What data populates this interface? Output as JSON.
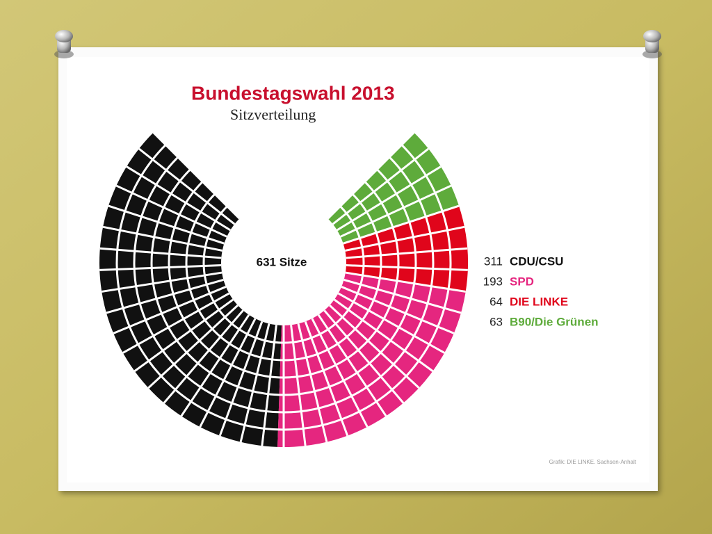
{
  "chart_data": {
    "type": "parliament",
    "title": "Bundestagswahl 2013",
    "subtitle": "Sitzverteilung",
    "center_label": "631 Sitze",
    "categories": [
      "CDU/CSU",
      "SPD",
      "DIE LINKE",
      "B90/Die Grünen"
    ],
    "values": [
      311,
      193,
      64,
      63
    ],
    "colors": [
      "#111111",
      "#e5267f",
      "#e0051b",
      "#5eab3b"
    ],
    "source": "Grafik: DIE LINKE. Sachsen-Anhalt"
  }
}
